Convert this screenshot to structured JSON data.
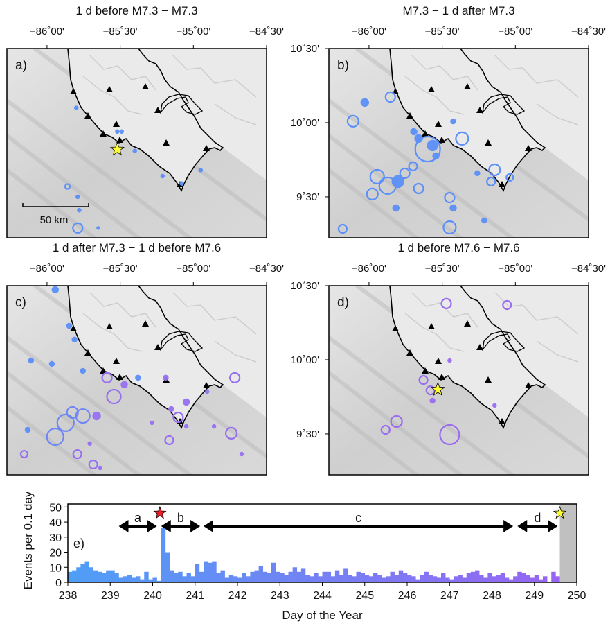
{
  "chart_data": [
    {
      "type": "map",
      "title": "1 d before M7.3 − M7.3",
      "panel_label": "a)",
      "scale_label": "50 km",
      "xlim": [
        -86.274,
        -84.5
      ],
      "ylim": [
        9.224,
        10.5
      ],
      "xticks": [
        {
          "value": -86,
          "label": "−86˚00'"
        },
        {
          "value": -85.5,
          "label": "−85˚30'"
        },
        {
          "value": -85,
          "label": "−85˚00'"
        },
        {
          "value": -84.5,
          "label": "−84˚30'"
        }
      ],
      "series": [
        {
          "color": "#5b8ff9",
          "style": "filled",
          "x": [
            -85.8,
            -85.52,
            -85.49,
            -85.4,
            -84.95,
            -85.21,
            -85.08,
            -85.79,
            -85.78,
            -85.65
          ],
          "y": [
            10.1,
            9.94,
            9.94,
            9.81,
            9.68,
            9.64,
            9.59,
            9.5,
            9.41,
            9.29
          ],
          "sizes": [
            3,
            3,
            3,
            3,
            3,
            3,
            3,
            3,
            3,
            2.5
          ]
        },
        {
          "color": "#5b8ff9",
          "style": "open",
          "x": [
            -85.79,
            -85.86
          ],
          "y": [
            9.29,
            9.57
          ],
          "sizes": [
            7,
            3.5
          ]
        }
      ],
      "star": {
        "x": -85.52,
        "y": 9.82,
        "color": "#ffff33"
      }
    },
    {
      "type": "map",
      "title": "M7.3 − 1 d after M7.3",
      "panel_label": "b)",
      "xlim": [
        -86.274,
        -84.5
      ],
      "ylim": [
        9.224,
        10.5
      ],
      "xticks": [
        {
          "value": -86,
          "label": "−86˚00'"
        },
        {
          "value": -85.5,
          "label": "−85˚30'"
        },
        {
          "value": -85,
          "label": "−85˚00'"
        },
        {
          "value": -84.5,
          "label": "−84˚30'"
        }
      ],
      "yticks": [
        {
          "value": 10.5,
          "label": "10˚30'"
        },
        {
          "value": 10,
          "label": "10˚00'"
        },
        {
          "value": 9.5,
          "label": "9˚30'"
        }
      ],
      "series": [
        {
          "color": "#5b8ff9",
          "style": "open",
          "x": [
            -86.109,
            -85.854,
            -85.599,
            -85.364,
            -85.142,
            -85.166,
            -85.038,
            -85.944,
            -85.873,
            -85.755,
            -85.977,
            -85.661,
            -85.449,
            -85.449,
            -86.18,
            -85.699
          ],
          "y": [
            10.01,
            10.173,
            9.822,
            9.893,
            9.682,
            9.603,
            9.631,
            9.636,
            9.575,
            9.659,
            9.519,
            9.556,
            9.495,
            9.294,
            9.285,
            9.706
          ],
          "sizes": [
            8,
            7,
            18,
            9,
            8,
            6,
            5,
            10,
            12,
            7,
            8,
            7,
            7,
            9,
            6,
            6
          ]
        },
        {
          "color": "#5b8ff9",
          "style": "filled",
          "x": [
            -86.029,
            -85.566,
            -85.661,
            -85.694,
            -85.543,
            -85.425,
            -85.802,
            -85.816,
            -85.425,
            -85.213,
            -85.26
          ],
          "y": [
            10.136,
            9.846,
            9.893,
            9.939,
            9.776,
            10.009,
            9.603,
            9.425,
            9.425,
            9.341,
            9.659
          ],
          "sizes": [
            6,
            8,
            6,
            5,
            5,
            4,
            9,
            5,
            5,
            4,
            4
          ]
        }
      ]
    },
    {
      "type": "map",
      "title": "1 d after M7.3 − 1 d before M7.6",
      "panel_label": "c)",
      "xlim": [
        -86.274,
        -84.5
      ],
      "ylim": [
        9.224,
        10.5
      ],
      "xticks": [
        {
          "value": -86,
          "label": "−86˚00'"
        },
        {
          "value": -85.5,
          "label": "−85˚30'"
        },
        {
          "value": -85,
          "label": "−85˚00'"
        },
        {
          "value": -84.5,
          "label": "−84˚30'"
        }
      ],
      "series": [
        {
          "color": "#5b8ff9",
          "style": "filled",
          "x": [
            -85.944,
            -85.849,
            -85.812,
            -86.109,
            -85.967,
            -85.755,
            -85.378,
            -86.132
          ],
          "y": [
            10.472,
            10.229,
            10.136,
            9.995,
            9.972,
            9.925,
            9.879,
            9.528
          ],
          "sizes": [
            5,
            4,
            4,
            4,
            4,
            4,
            4,
            4
          ]
        },
        {
          "color": "#6f86f6",
          "style": "open",
          "x": [
            -85.755,
            -85.873,
            -85.944,
            -85.826
          ],
          "y": [
            9.621,
            9.575,
            9.481,
            9.645
          ],
          "sizes": [
            10,
            12,
            12,
            8
          ]
        },
        {
          "color": "#9670f0",
          "style": "open",
          "x": [
            -85.59,
            -85.543,
            -85.104,
            -84.717,
            -84.741,
            -85.793,
            -85.684,
            -86.156,
            -85.165
          ],
          "y": [
            9.879,
            9.752,
            9.612,
            9.879,
            9.505,
            9.364,
            9.294,
            9.364,
            9.458
          ],
          "sizes": [
            7,
            10,
            7,
            7,
            8,
            6,
            6,
            5,
            6
          ]
        },
        {
          "color": "#9670f0",
          "style": "filled",
          "x": [
            -85.472,
            -85.189,
            -85.151,
            -85.048,
            -84.906,
            -84.859,
            -85.661,
            -85.708,
            -85.637,
            -85.283,
            -85.048,
            -84.67
          ],
          "y": [
            9.832,
            9.879,
            9.668,
            9.715,
            9.785,
            9.551,
            9.621,
            9.435,
            9.271,
            9.575,
            9.551,
            9.364
          ],
          "sizes": [
            5,
            4,
            4,
            5,
            3,
            3,
            6,
            3,
            3,
            3,
            3,
            3
          ]
        }
      ]
    },
    {
      "type": "map",
      "title": "1 d before M7.6 − M7.6",
      "panel_label": "d)",
      "xlim": [
        -86.274,
        -84.5
      ],
      "ylim": [
        9.224,
        10.5
      ],
      "xticks": [
        {
          "value": -86,
          "label": "−86˚00'"
        },
        {
          "value": -85.5,
          "label": "−85˚30'"
        },
        {
          "value": -85,
          "label": "−85˚00'"
        },
        {
          "value": -84.5,
          "label": "−84˚30'"
        }
      ],
      "yticks": [
        {
          "value": 10.5,
          "label": "10˚30'"
        },
        {
          "value": 10,
          "label": "10˚00'"
        },
        {
          "value": 9.5,
          "label": "9˚30'"
        }
      ],
      "series": [
        {
          "color": "#9a6cf0",
          "style": "open",
          "x": [
            -85.472,
            -85.057,
            -85.628,
            -85.58,
            -85.812,
            -85.887,
            -85.449
          ],
          "y": [
            10.379,
            10.369,
            9.864,
            9.794,
            9.584,
            9.528,
            9.495
          ],
          "sizes": [
            7,
            6,
            6,
            6,
            8,
            6,
            14
          ]
        },
        {
          "color": "#9a6cf0",
          "style": "filled",
          "x": [
            -85.566,
            -85.449,
            -85.142
          ],
          "y": [
            9.724,
            9.995,
            9.692
          ],
          "sizes": [
            4,
            3,
            3
          ]
        }
      ],
      "star": {
        "x": -85.53,
        "y": 9.8,
        "color": "#ffff33"
      }
    },
    {
      "type": "histogram",
      "panel_label": "e)",
      "xlabel": "Day of the Year",
      "ylabel": "Events per 0.1 day",
      "xlim": [
        238,
        250
      ],
      "ylim": [
        0,
        52
      ],
      "xticks": [
        238,
        239,
        240,
        241,
        242,
        243,
        244,
        245,
        246,
        247,
        248,
        249,
        250
      ],
      "yticks": [
        0,
        10,
        20,
        30,
        40,
        50
      ],
      "colors": [
        "#4f9ef6",
        "#9a63f2"
      ],
      "bins": [
        238.0,
        238.1,
        238.2,
        238.3,
        238.4,
        238.5,
        238.6,
        238.7,
        238.8,
        238.9,
        239.0,
        239.1,
        239.2,
        239.3,
        239.4,
        239.5,
        239.6,
        239.7,
        239.8,
        239.9,
        240.0,
        240.1,
        240.2,
        240.3,
        240.4,
        240.5,
        240.6,
        240.7,
        240.8,
        240.9,
        241.0,
        241.1,
        241.2,
        241.3,
        241.4,
        241.5,
        241.6,
        241.7,
        241.8,
        241.9,
        242.0,
        242.1,
        242.2,
        242.3,
        242.4,
        242.5,
        242.6,
        242.7,
        242.8,
        242.9,
        243.0,
        243.1,
        243.2,
        243.3,
        243.4,
        243.5,
        243.6,
        243.7,
        243.8,
        243.9,
        244.0,
        244.1,
        244.2,
        244.3,
        244.4,
        244.5,
        244.6,
        244.7,
        244.8,
        244.9,
        245.0,
        245.1,
        245.2,
        245.3,
        245.4,
        245.5,
        245.6,
        245.7,
        245.8,
        245.9,
        246.0,
        246.1,
        246.2,
        246.3,
        246.4,
        246.5,
        246.6,
        246.7,
        246.8,
        246.9,
        247.0,
        247.1,
        247.2,
        247.3,
        247.4,
        247.5,
        247.6,
        247.7,
        247.8,
        247.9,
        248.0,
        248.1,
        248.2,
        248.3,
        248.4,
        248.5,
        248.6,
        248.7,
        248.8,
        248.9,
        249.0,
        249.1,
        249.2,
        249.3,
        249.4,
        249.5,
        249.6,
        249.7,
        249.8,
        249.9,
        250.0
      ],
      "counts": [
        7,
        8,
        10,
        12,
        14,
        10,
        8,
        7,
        6,
        8,
        8,
        6,
        3,
        4,
        5,
        3,
        4,
        2,
        7,
        2,
        3,
        1,
        36,
        20,
        8,
        6,
        7,
        4,
        6,
        4,
        12,
        7,
        14,
        13,
        14,
        6,
        8,
        3,
        5,
        4,
        3,
        6,
        4,
        7,
        8,
        11,
        7,
        6,
        13,
        7,
        6,
        5,
        7,
        10,
        7,
        9,
        5,
        4,
        6,
        4,
        7,
        7,
        4,
        8,
        5,
        9,
        5,
        4,
        7,
        6,
        5,
        4,
        6,
        5,
        3,
        4,
        7,
        5,
        8,
        6,
        5,
        4,
        2,
        5,
        7,
        5,
        4,
        3,
        6,
        3,
        2,
        4,
        5,
        3,
        6,
        7,
        8,
        5,
        3,
        6,
        4,
        5,
        6,
        3,
        2,
        4,
        7,
        6,
        5,
        3,
        5,
        2,
        4,
        0,
        7,
        4,
        0,
        0,
        0,
        0
      ],
      "shade": [
        249.6,
        250
      ],
      "shade_color": "#c0c0c0",
      "intervals": [
        {
          "label": "a",
          "start": 239.2,
          "end": 240.1
        },
        {
          "label": "b",
          "start": 240.2,
          "end": 241.12
        },
        {
          "label": "c",
          "start": 241.2,
          "end": 248.5
        },
        {
          "label": "d",
          "start": 248.6,
          "end": 249.55
        }
      ],
      "markers": [
        {
          "x": 240.17,
          "y": 46,
          "color": "#e8222a"
        },
        {
          "x": 249.6,
          "y": 46,
          "color": "#ffff33"
        }
      ]
    }
  ]
}
